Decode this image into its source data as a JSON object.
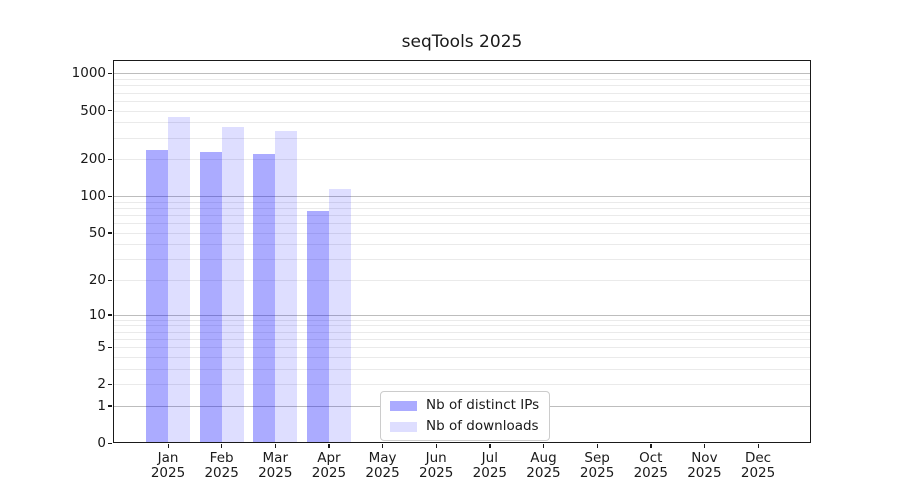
{
  "title": "seqTools 2025",
  "chart_data": {
    "type": "bar",
    "title": "seqTools 2025",
    "categories": [
      "Jan",
      "Feb",
      "Mar",
      "Apr",
      "May",
      "Jun",
      "Jul",
      "Aug",
      "Sep",
      "Oct",
      "Nov",
      "Dec"
    ],
    "year": "2025",
    "series": [
      {
        "name": "Nb of distinct IPs",
        "color": "rgba(0,0,255,0.33)",
        "values": [
          240,
          230,
          220,
          75,
          null,
          null,
          null,
          null,
          null,
          null,
          null,
          null
        ]
      },
      {
        "name": "Nb of downloads",
        "color": "rgba(0,0,255,0.13)",
        "values": [
          440,
          370,
          340,
          115,
          null,
          null,
          null,
          null,
          null,
          null,
          null,
          null
        ]
      }
    ],
    "y_scale": "log1p",
    "y_ticks": [
      0,
      1,
      2,
      5,
      10,
      20,
      50,
      100,
      200,
      500,
      1000
    ],
    "y_major_gridlines": [
      1,
      10,
      100,
      1000
    ],
    "ylim": [
      0,
      1360
    ],
    "grid": "major-and-minor",
    "legend_position": "inside-bottom-center",
    "colors": {
      "major_grid": "#bdbdbd",
      "minor_grid": "#eaeaea",
      "spine": "#1a1a1a",
      "text": "#1a1a1a",
      "background": "#ffffff"
    }
  }
}
